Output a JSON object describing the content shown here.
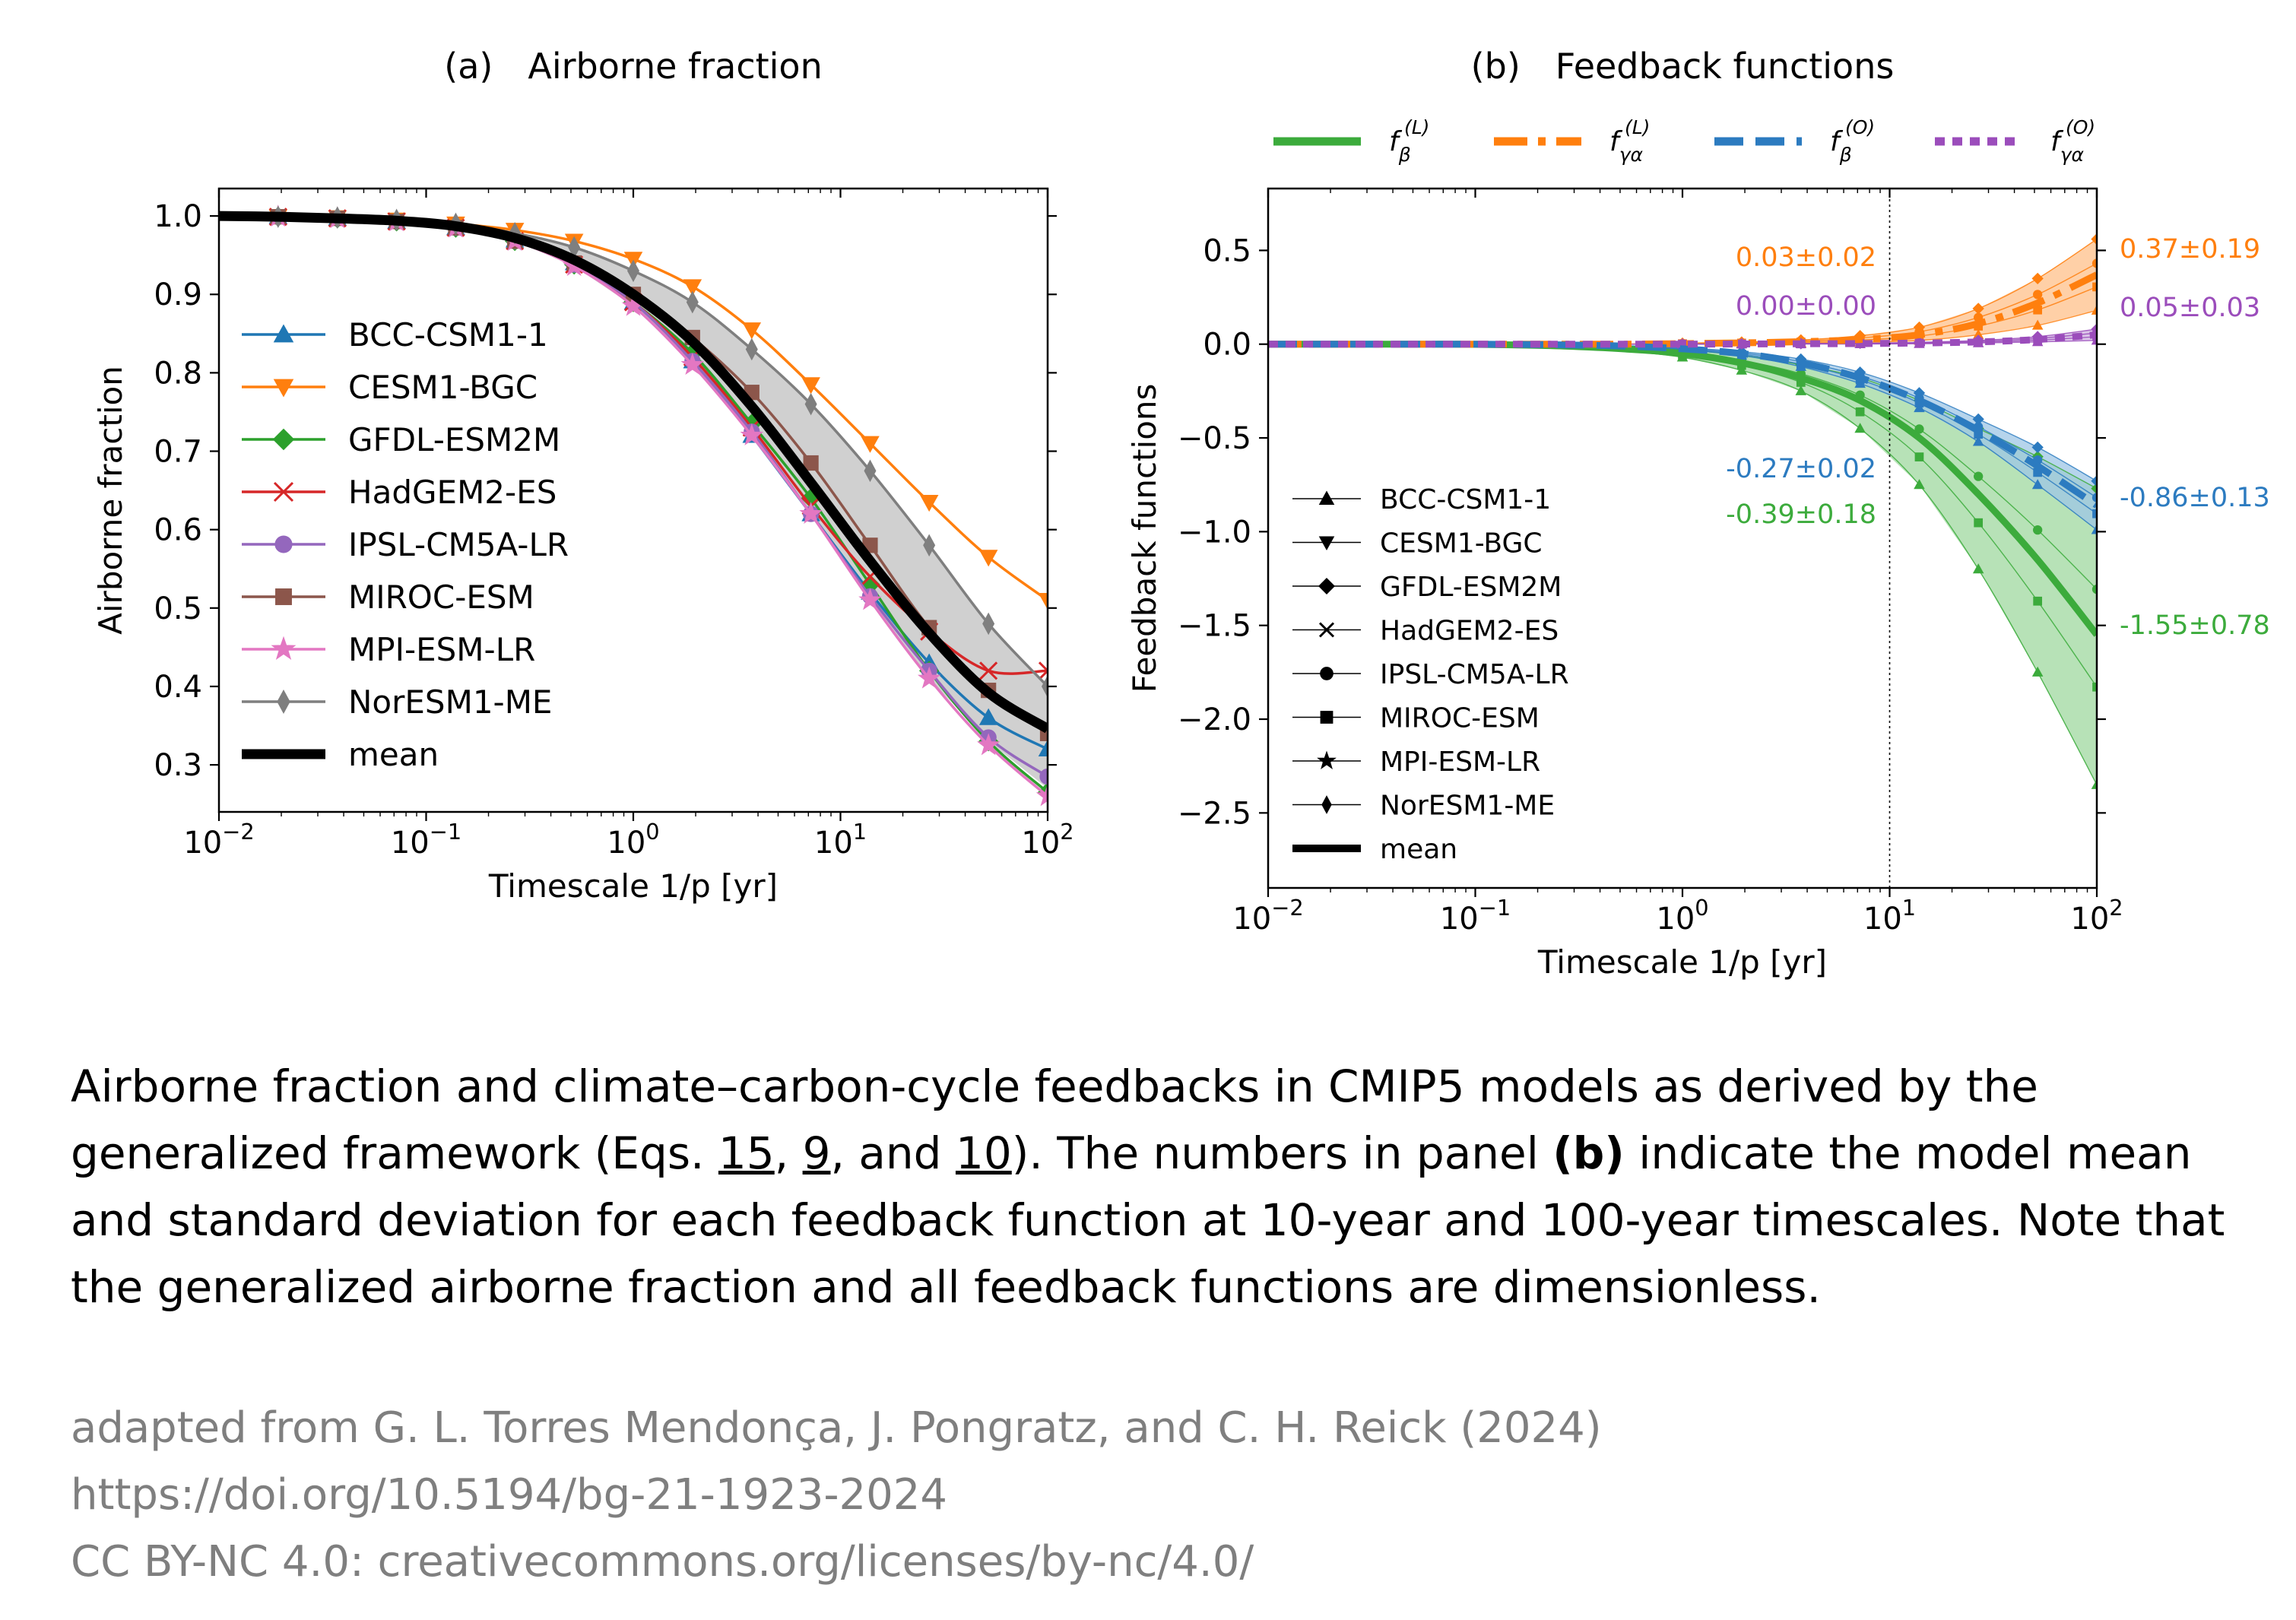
{
  "colors": {
    "BCC-CSM1-1": "#1f77b4",
    "CESM1-BGC": "#ff7f0e",
    "GFDL-ESM2M": "#2ca02c",
    "HadGEM2-ES": "#d62728",
    "IPSL-CM5A-LR": "#9467bd",
    "MIROC-ESM": "#8c564b",
    "MPI-ESM-LR": "#e377c2",
    "NorESM1-ME": "#7f7f7f",
    "mean": "#000000",
    "land_beta": "#3cab3c",
    "land_gamma": "#ff7f0e",
    "ocean_beta": "#2c7bc0",
    "ocean_gamma": "#9b4dbb"
  },
  "chart_data": [
    {
      "type": "line",
      "title": "(a)   Airborne fraction",
      "xlabel": "Timescale 1/p [yr]",
      "ylabel": "Airborne fraction",
      "xscale": "log",
      "xlim": [
        0.01,
        100
      ],
      "ylim": [
        0.24,
        1.035
      ],
      "xticks": [
        "10^{-2}",
        "10^{-1}",
        "10^{0}",
        "10^{1}",
        "10^{2}"
      ],
      "yticks": [
        "0.3",
        "0.4",
        "0.5",
        "0.6",
        "0.7",
        "0.8",
        "0.9",
        "1.0"
      ],
      "legend_position": "lower-left",
      "x": [
        0.01,
        0.0193,
        0.0373,
        0.072,
        0.139,
        0.268,
        0.518,
        1.0,
        1.93,
        3.73,
        7.2,
        13.9,
        26.8,
        51.8,
        100
      ],
      "series": [
        {
          "name": "BCC-CSM1-1",
          "marker": "triangle-up",
          "values": [
            1.0,
            0.999,
            0.997,
            0.993,
            0.985,
            0.969,
            0.94,
            0.89,
            0.815,
            0.72,
            0.62,
            0.52,
            0.43,
            0.36,
            0.32
          ]
        },
        {
          "name": "CESM1-BGC",
          "marker": "triangle-down",
          "values": [
            1.0,
            0.999,
            0.998,
            0.995,
            0.99,
            0.982,
            0.968,
            0.945,
            0.91,
            0.855,
            0.785,
            0.71,
            0.635,
            0.565,
            0.51
          ]
        },
        {
          "name": "GFDL-ESM2M",
          "marker": "diamond",
          "values": [
            1.0,
            0.999,
            0.997,
            0.993,
            0.985,
            0.968,
            0.938,
            0.89,
            0.825,
            0.735,
            0.64,
            0.53,
            0.42,
            0.33,
            0.265
          ]
        },
        {
          "name": "HadGEM2-ES",
          "marker": "x",
          "values": [
            1.0,
            0.999,
            0.997,
            0.993,
            0.985,
            0.968,
            0.938,
            0.89,
            0.82,
            0.73,
            0.63,
            0.54,
            0.47,
            0.42,
            0.42
          ]
        },
        {
          "name": "IPSL-CM5A-LR",
          "marker": "circle",
          "values": [
            1.0,
            0.999,
            0.997,
            0.993,
            0.985,
            0.968,
            0.938,
            0.89,
            0.815,
            0.725,
            0.62,
            0.515,
            0.42,
            0.335,
            0.285
          ]
        },
        {
          "name": "MIROC-ESM",
          "marker": "square",
          "values": [
            1.0,
            0.999,
            0.997,
            0.993,
            0.985,
            0.968,
            0.94,
            0.9,
            0.845,
            0.775,
            0.685,
            0.58,
            0.475,
            0.395,
            0.34
          ]
        },
        {
          "name": "MPI-ESM-LR",
          "marker": "star",
          "values": [
            1.0,
            0.999,
            0.997,
            0.993,
            0.985,
            0.968,
            0.936,
            0.885,
            0.81,
            0.72,
            0.62,
            0.51,
            0.41,
            0.325,
            0.26
          ]
        },
        {
          "name": "NorESM1-ME",
          "marker": "thin-diamond",
          "values": [
            1.0,
            0.999,
            0.998,
            0.995,
            0.99,
            0.978,
            0.96,
            0.93,
            0.89,
            0.83,
            0.76,
            0.675,
            0.58,
            0.48,
            0.4
          ]
        },
        {
          "name": "mean",
          "marker": "none",
          "values": [
            1.0,
            0.999,
            0.997,
            0.994,
            0.987,
            0.972,
            0.944,
            0.9,
            0.84,
            0.757,
            0.66,
            0.56,
            0.468,
            0.392,
            0.346
          ]
        }
      ],
      "band": {
        "lower": [
          1.0,
          0.999,
          0.997,
          0.993,
          0.985,
          0.968,
          0.936,
          0.885,
          0.81,
          0.72,
          0.62,
          0.51,
          0.41,
          0.33,
          0.27
        ],
        "upper": [
          1.0,
          0.999,
          0.998,
          0.995,
          0.99,
          0.978,
          0.96,
          0.93,
          0.89,
          0.83,
          0.76,
          0.675,
          0.58,
          0.48,
          0.4
        ]
      }
    },
    {
      "type": "line",
      "title": "(b)   Feedback functions",
      "xlabel": "Timescale 1/p [yr]",
      "ylabel": "Feedback functions",
      "xscale": "log",
      "xlim": [
        0.01,
        100
      ],
      "ylim": [
        -2.9,
        0.83
      ],
      "xticks": [
        "10^{-2}",
        "10^{-1}",
        "10^{0}",
        "10^{1}",
        "10^{2}"
      ],
      "yticks": [
        "0.5",
        "0.0",
        "−0.5",
        "−1.0",
        "−1.5",
        "−2.0",
        "−2.5"
      ],
      "vline_x": 10,
      "legend_position": "lower-left",
      "top_legend": [
        {
          "key": "land_beta",
          "base": "f",
          "sub": "β",
          "sup": "(L)"
        },
        {
          "key": "land_gamma",
          "base": "f",
          "sub": "γα",
          "sup": "(L)"
        },
        {
          "key": "ocean_beta",
          "base": "f",
          "sub": "β",
          "sup": "(O)"
        },
        {
          "key": "ocean_gamma",
          "base": "f",
          "sub": "γα",
          "sup": "(O)"
        }
      ],
      "model_legend": [
        "BCC-CSM1-1",
        "CESM1-BGC",
        "GFDL-ESM2M",
        "HadGEM2-ES",
        "IPSL-CM5A-LR",
        "MIROC-ESM",
        "MPI-ESM-LR",
        "NorESM1-ME",
        "mean"
      ],
      "x": [
        0.01,
        0.0193,
        0.0373,
        0.072,
        0.139,
        0.268,
        0.518,
        1.0,
        1.93,
        3.73,
        7.2,
        13.9,
        26.8,
        51.8,
        100
      ],
      "series": [
        {
          "name": "land_beta_mean",
          "values": [
            0,
            0,
            0,
            0,
            -0.003,
            -0.01,
            -0.025,
            -0.05,
            -0.1,
            -0.18,
            -0.3,
            -0.5,
            -0.8,
            -1.15,
            -1.55
          ],
          "band_lower": [
            0,
            0,
            0,
            0,
            -0.004,
            -0.014,
            -0.035,
            -0.07,
            -0.14,
            -0.25,
            -0.45,
            -0.75,
            -1.2,
            -1.75,
            -2.35
          ],
          "band_upper": [
            0,
            0,
            0,
            0,
            -0.002,
            -0.006,
            -0.015,
            -0.03,
            -0.06,
            -0.11,
            -0.18,
            -0.3,
            -0.45,
            -0.6,
            -0.77
          ]
        },
        {
          "name": "land_gamma_mean",
          "values": [
            0,
            0,
            0,
            0,
            0,
            0,
            0,
            0.003,
            0.007,
            0.013,
            0.025,
            0.05,
            0.11,
            0.22,
            0.37
          ],
          "band_lower": [
            0,
            0,
            0,
            0,
            0,
            0,
            0,
            0.001,
            0.003,
            0.006,
            0.01,
            0.02,
            0.05,
            0.1,
            0.18
          ],
          "band_upper": [
            0,
            0,
            0,
            0,
            0,
            0,
            0,
            0.005,
            0.011,
            0.022,
            0.045,
            0.09,
            0.19,
            0.35,
            0.56
          ]
        },
        {
          "name": "ocean_beta_mean",
          "values": [
            0,
            0,
            0,
            0,
            -0.001,
            -0.004,
            -0.01,
            -0.025,
            -0.05,
            -0.1,
            -0.18,
            -0.3,
            -0.46,
            -0.65,
            -0.86
          ],
          "band_lower": [
            0,
            0,
            0,
            0,
            -0.001,
            -0.005,
            -0.013,
            -0.03,
            -0.06,
            -0.12,
            -0.21,
            -0.34,
            -0.52,
            -0.75,
            -0.99
          ],
          "band_upper": [
            0,
            0,
            0,
            0,
            -0.001,
            -0.003,
            -0.008,
            -0.02,
            -0.04,
            -0.08,
            -0.15,
            -0.26,
            -0.4,
            -0.55,
            -0.73
          ]
        },
        {
          "name": "ocean_gamma_mean",
          "values": [
            0,
            0,
            0,
            0,
            0,
            0,
            0,
            0,
            0.001,
            0.002,
            0.003,
            0.006,
            0.012,
            0.025,
            0.05
          ],
          "band_lower": [
            0,
            0,
            0,
            0,
            0,
            0,
            0,
            0,
            0,
            0.001,
            0.001,
            0.002,
            0.006,
            0.012,
            0.02
          ],
          "band_upper": [
            0,
            0,
            0,
            0,
            0,
            0,
            0,
            0,
            0.002,
            0.003,
            0.005,
            0.01,
            0.02,
            0.04,
            0.08
          ]
        }
      ],
      "annotations": [
        {
          "text": "0.03±0.02",
          "key": "land_gamma",
          "side": "left"
        },
        {
          "text": "0.00±0.00",
          "key": "ocean_gamma",
          "side": "left"
        },
        {
          "text": "-0.27±0.02",
          "key": "ocean_beta",
          "side": "left"
        },
        {
          "text": "-0.39±0.18",
          "key": "land_beta",
          "side": "left"
        },
        {
          "text": "0.37±0.19",
          "key": "land_gamma",
          "side": "right"
        },
        {
          "text": "0.05±0.03",
          "key": "ocean_gamma",
          "side": "right"
        },
        {
          "text": "-0.86±0.13",
          "key": "ocean_beta",
          "side": "right"
        },
        {
          "text": "-1.55±0.78",
          "key": "land_beta",
          "side": "right"
        }
      ]
    }
  ],
  "caption": {
    "part1": "Airborne fraction and climate–carbon-cycle feedbacks in CMIP5 models as derived by the generalized framework (Eqs. ",
    "ref1": "15",
    "sep1": ", ",
    "ref2": "9",
    "sep2": ", and ",
    "ref3": "10",
    "part2": "). The numbers in panel ",
    "bold": "(b)",
    "part3": " indicate the model mean and standard deviation for each feedback function at 10-year and 100-year timescales. Note that the generalized airborne fraction and all feedback functions are dimensionless."
  },
  "credit": {
    "line1": "adapted from G. L. Torres Mendonça, J. Pongratz, and C. H. Reick (2024)",
    "line2": "https://doi.org/10.5194/bg-21-1923-2024",
    "line3": "CC BY-NC 4.0: creativecommons.org/licenses/by-nc/4.0/"
  }
}
